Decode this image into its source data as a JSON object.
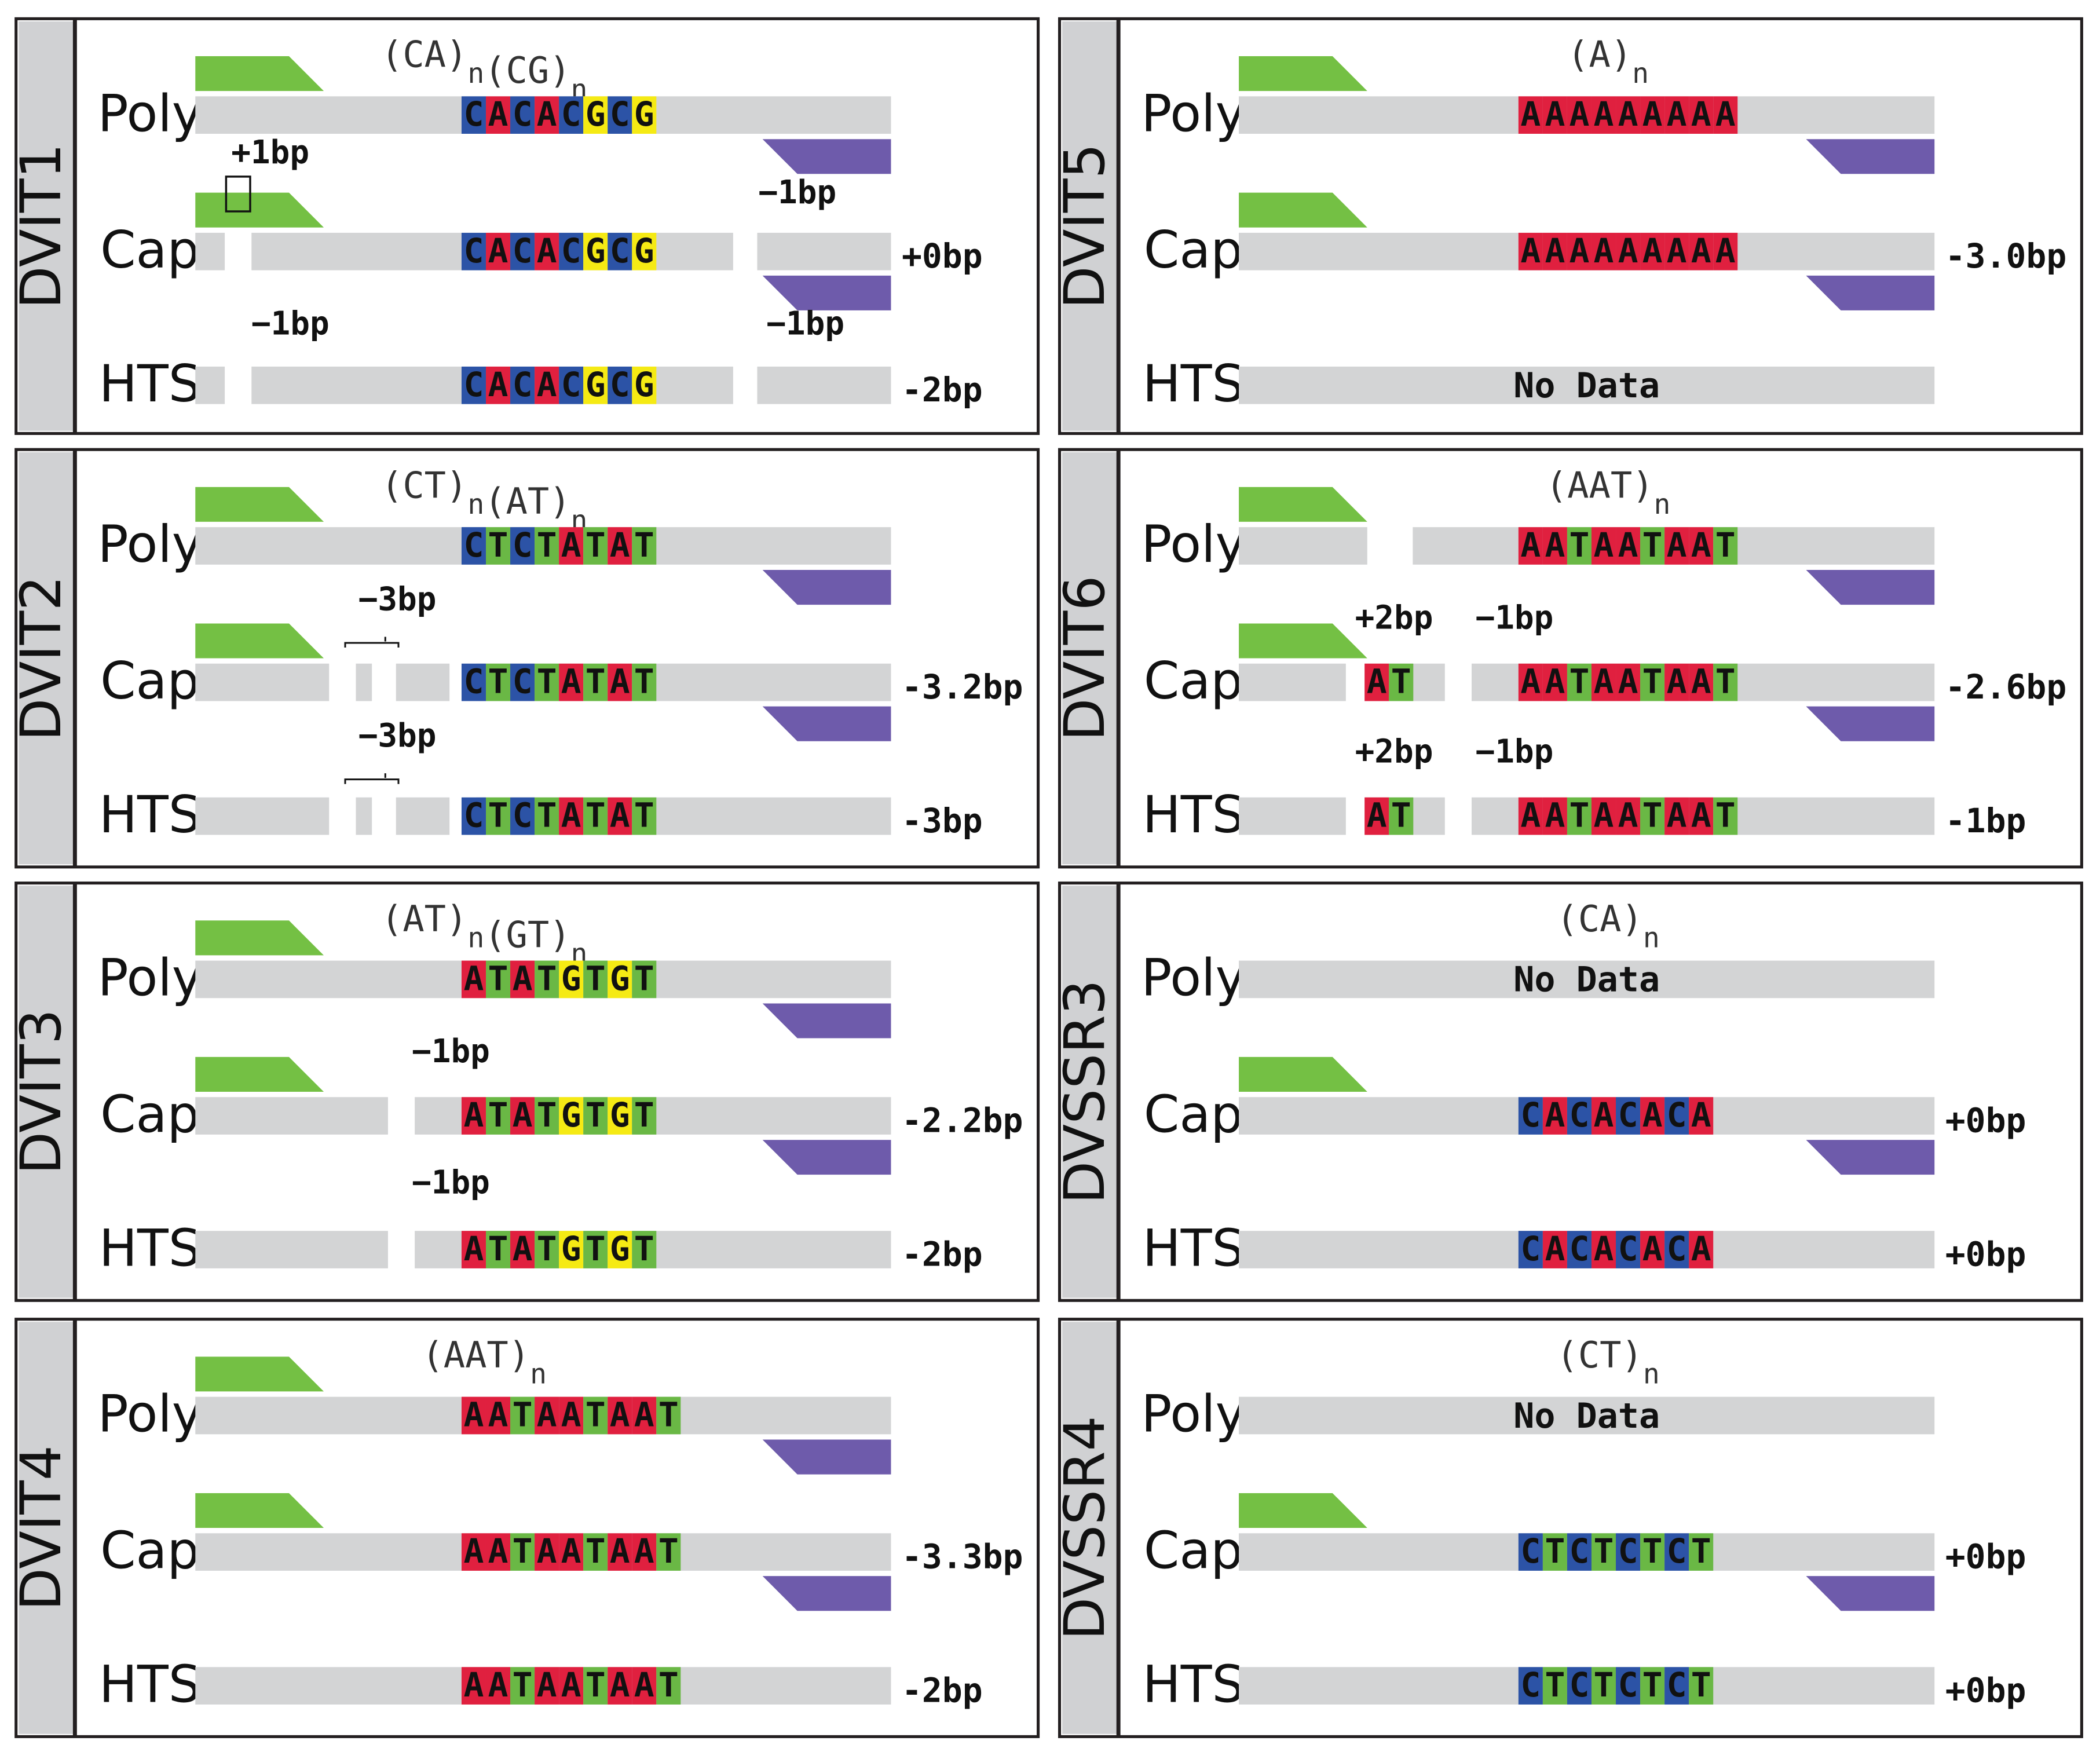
{
  "colors": {
    "A": "#e0203f",
    "C": "#2c53a6",
    "G": "#f5ea14",
    "T": "#6ab845",
    "bar": "#d3d4d5",
    "forward_primer": "#74c044",
    "reverse_primer": "#6e5bab",
    "panel_border": "#231f20",
    "side_bg": "#d0d1d3"
  },
  "panels": [
    {
      "name": "DVIT1",
      "motif": [
        {
          "t": "(CA)",
          "s": "n"
        },
        {
          "t": "(CG)",
          "s": "n"
        }
      ],
      "rows": [
        {
          "label": "Poly",
          "seq": "CACACGCG",
          "result": ""
        },
        {
          "label": "Cap",
          "seq": "CACACGCG",
          "result": "+0bp"
        },
        {
          "label": "HTS",
          "seq": "CACACGCG",
          "result": "-2bp"
        }
      ],
      "notes": [
        "+1bp",
        "−1bp",
        "−1bp",
        "−1bp"
      ]
    },
    {
      "name": "DVIT2",
      "motif": [
        {
          "t": "(CT)",
          "s": "n"
        },
        {
          "t": "(AT)",
          "s": "n"
        }
      ],
      "rows": [
        {
          "label": "Poly",
          "seq": "CTCTATAT",
          "result": ""
        },
        {
          "label": "Cap",
          "seq": "CTCTATAT",
          "result": "-3.2bp"
        },
        {
          "label": "HTS",
          "seq": "CTCTATAT",
          "result": "-3bp"
        }
      ],
      "notes": [
        "−3bp",
        "−3bp"
      ]
    },
    {
      "name": "DVIT3",
      "motif": [
        {
          "t": "(AT)",
          "s": "n"
        },
        {
          "t": "(GT)",
          "s": "n"
        }
      ],
      "rows": [
        {
          "label": "Poly",
          "seq": "ATATGTGT",
          "result": ""
        },
        {
          "label": "Cap",
          "seq": "ATATGTGT",
          "result": "-2.2bp"
        },
        {
          "label": "HTS",
          "seq": "ATATGTGT",
          "result": "-2bp"
        }
      ],
      "notes": [
        "−1bp",
        "−1bp"
      ]
    },
    {
      "name": "DVIT4",
      "motif": [
        {
          "t": "(AAT)",
          "s": "n"
        }
      ],
      "rows": [
        {
          "label": "Poly",
          "seq": "AATAATAAT",
          "result": ""
        },
        {
          "label": "Cap",
          "seq": "AATAATAAT",
          "result": "-3.3bp"
        },
        {
          "label": "HTS",
          "seq": "AATAATAAT",
          "result": "-2bp"
        }
      ],
      "notes": []
    },
    {
      "name": "DVIT5",
      "motif": [
        {
          "t": "(A)",
          "s": "n"
        }
      ],
      "rows": [
        {
          "label": "Poly",
          "seq": "AAAAAAAAA",
          "result": ""
        },
        {
          "label": "Cap",
          "seq": "AAAAAAAAA",
          "result": "-3.0bp"
        },
        {
          "label": "HTS",
          "seq": "",
          "nodata": "No Data",
          "result": ""
        }
      ],
      "notes": []
    },
    {
      "name": "DVIT6",
      "motif": [
        {
          "t": "(AAT)",
          "s": "n"
        }
      ],
      "rows": [
        {
          "label": "Poly",
          "seq": "AATAATAAT",
          "result": ""
        },
        {
          "label": "Cap",
          "seq": "AATAATAAT",
          "extra": "AT",
          "result": "-2.6bp"
        },
        {
          "label": "HTS",
          "seq": "AATAATAAT",
          "extra": "AT",
          "result": "-1bp"
        }
      ],
      "notes": [
        "+2bp",
        "−1bp",
        "+2bp",
        "−1bp"
      ]
    },
    {
      "name": "DVSSR3",
      "motif": [
        {
          "t": "(CA)",
          "s": "n"
        }
      ],
      "rows": [
        {
          "label": "Poly",
          "seq": "",
          "nodata": "No Data",
          "result": ""
        },
        {
          "label": "Cap",
          "seq": "CACACACA",
          "result": "+0bp"
        },
        {
          "label": "HTS",
          "seq": "CACACACA",
          "result": "+0bp"
        }
      ],
      "notes": []
    },
    {
      "name": "DVSSR4",
      "motif": [
        {
          "t": "(CT)",
          "s": "n"
        }
      ],
      "rows": [
        {
          "label": "Poly",
          "seq": "",
          "nodata": "No Data",
          "result": ""
        },
        {
          "label": "Cap",
          "seq": "CTCTCTCT",
          "result": "+0bp"
        },
        {
          "label": "HTS",
          "seq": "CTCTCTCT",
          "result": "+0bp"
        }
      ],
      "notes": []
    }
  ]
}
